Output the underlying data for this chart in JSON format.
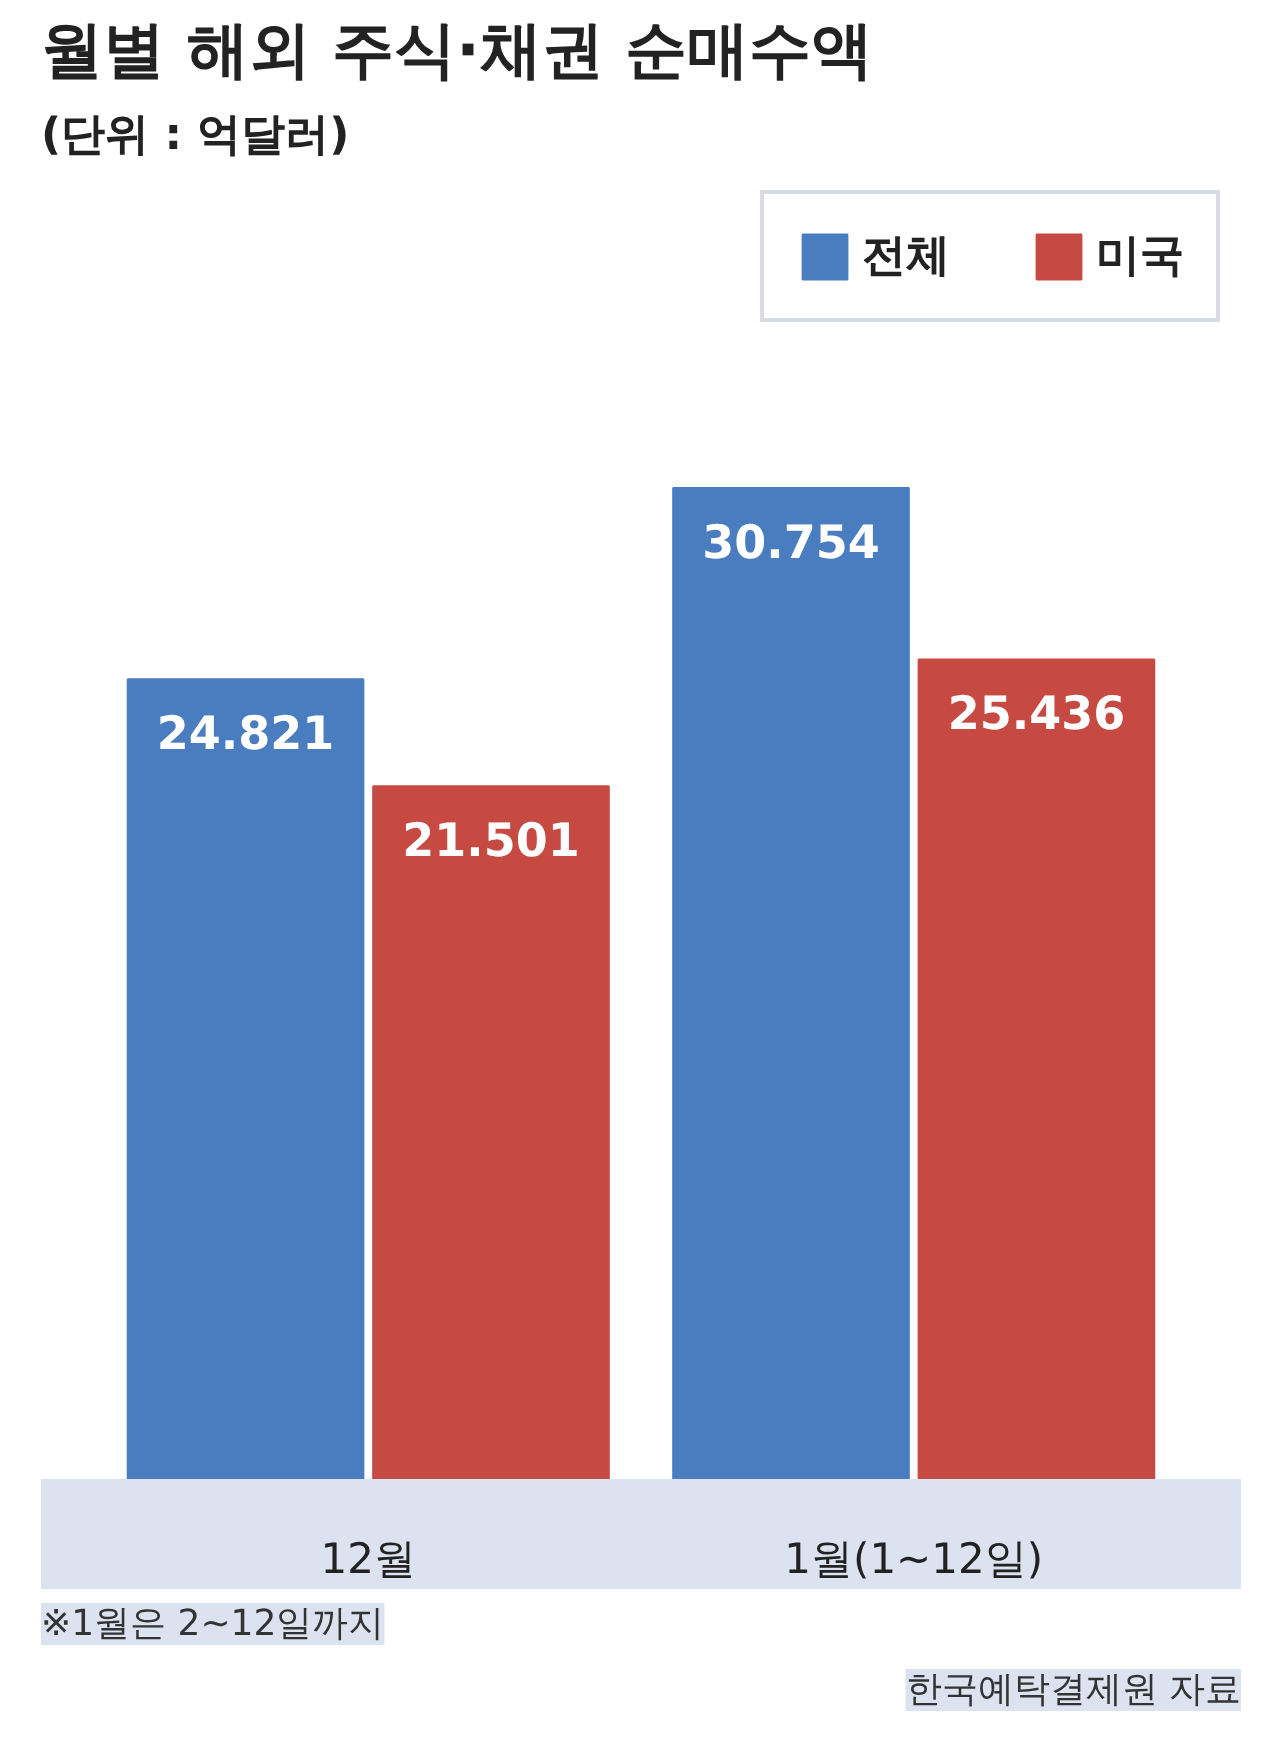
{
  "chart_data": {
    "type": "bar",
    "title": "월별 해외 주식·채권 순매수액",
    "subtitle": "(단위 : 억달러)",
    "categories": [
      "12월",
      "1월(1~12일)"
    ],
    "series": [
      {
        "name": "전체",
        "color": "#4a7cc0",
        "values": [
          24.821,
          30.754
        ]
      },
      {
        "name": "미국",
        "color": "#c64a41",
        "values": [
          21.501,
          25.436
        ]
      }
    ],
    "data_labels": true,
    "legend": "top right",
    "grid": false,
    "annotations": [
      "※1월은 2~12일까지",
      "한국예탁결제원 자료"
    ]
  }
}
